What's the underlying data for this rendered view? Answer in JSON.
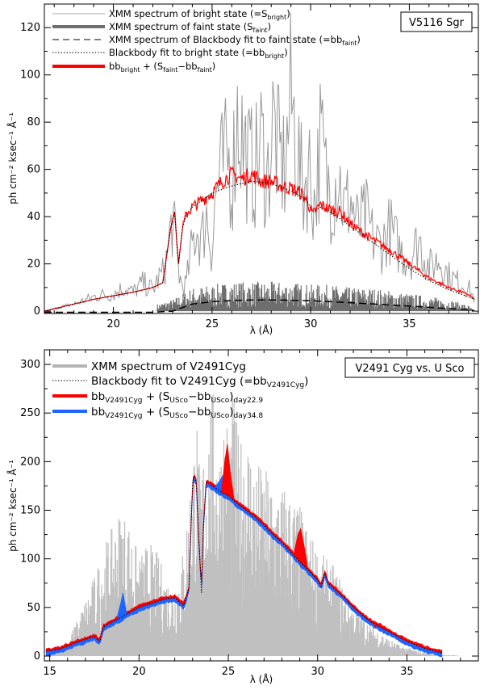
{
  "chart_data": [
    {
      "type": "line",
      "panel": "top",
      "title": "V5116 Sgr",
      "xlabel": "λ (Å)",
      "ylabel": "ph cm⁻² ksec⁻¹ Å⁻¹",
      "xlim": [
        16.5,
        38.5
      ],
      "ylim": [
        -1,
        130
      ],
      "xticks": [
        20,
        25,
        30,
        35
      ],
      "yticks": [
        0,
        20,
        40,
        60,
        80,
        100,
        120
      ],
      "legend": [
        {
          "text": "XMM spectrum of bright state (=S",
          "sub": "bright",
          "tail": ")",
          "style": "thin-gray"
        },
        {
          "text": "XMM spectrum of faint state (S",
          "sub": "faint",
          "tail": ")",
          "style": "thick-gray"
        },
        {
          "text": "XMM spectrum of Blackbody fit to faint state (=bb",
          "sub": "faint",
          "tail": ")",
          "style": "dashed"
        },
        {
          "text": "Blackbody fit to bright state (=bb",
          "sub": "bright",
          "tail": ")",
          "style": "dotted"
        },
        {
          "parts": [
            "bb",
            "bright",
            " + (S",
            "faint",
            "−bb",
            "faint",
            ")"
          ],
          "style": "red"
        }
      ],
      "series": [
        {
          "name": "S_bright",
          "color": "#999999",
          "x": [
            16.5,
            17,
            18,
            19,
            19.5,
            20,
            20.5,
            21,
            21.5,
            22,
            22.3,
            22.5,
            22.7,
            23.0,
            23.2,
            23.35,
            23.5,
            23.7,
            24.0,
            24.2,
            24.5,
            24.7,
            25.0,
            25.2,
            25.5,
            25.8,
            26.0,
            26.3,
            26.6,
            26.9,
            27.2,
            27.5,
            27.8,
            28.1,
            28.4,
            28.7,
            29.0,
            29.3,
            29.6,
            29.9,
            30.2,
            30.5,
            30.8,
            31.1,
            31.4,
            31.7,
            32.0,
            32.4,
            32.8,
            33.2,
            33.6,
            34.0,
            34.5,
            35.0,
            35.5,
            36.0,
            36.5,
            37.0,
            37.5,
            38.0,
            38.3
          ],
          "values": [
            0,
            1,
            3,
            6,
            7,
            7,
            10,
            8,
            12,
            9,
            14,
            16,
            22,
            40,
            25,
            15,
            10,
            12,
            28,
            35,
            30,
            42,
            25,
            50,
            60,
            65,
            55,
            85,
            70,
            62,
            60,
            72,
            55,
            80,
            65,
            60,
            90,
            70,
            50,
            62,
            45,
            72,
            55,
            50,
            60,
            42,
            48,
            35,
            40,
            30,
            28,
            35,
            26,
            22,
            30,
            18,
            22,
            15,
            12,
            10,
            5
          ]
        },
        {
          "name": "S_faint",
          "color": "#6e6e6e",
          "x": [
            16.5,
            18,
            20,
            21,
            22,
            22.5,
            23,
            23.5,
            24,
            25,
            26,
            27,
            28,
            29,
            30,
            31,
            32,
            33,
            34,
            35,
            36,
            37,
            38,
            38.3
          ],
          "values": [
            0,
            0,
            0,
            0.5,
            1,
            1.5,
            2,
            3,
            4,
            4.5,
            5,
            5,
            5,
            5,
            4.5,
            4.5,
            4,
            4,
            3.5,
            3,
            2.5,
            2,
            1,
            0
          ]
        },
        {
          "name": "bb_faint",
          "color": "#000000",
          "x": [
            16.5,
            18,
            20,
            22,
            23,
            23.5,
            24,
            25,
            26,
            27,
            28,
            29,
            30,
            31,
            32,
            33,
            34,
            35,
            36,
            37,
            38,
            38.3
          ],
          "values": [
            -0.5,
            -0.5,
            -0.5,
            -0.5,
            0,
            1.5,
            3,
            4,
            4.5,
            4.7,
            4.7,
            4.6,
            4.4,
            4.0,
            3.6,
            3.1,
            2.6,
            2.1,
            1.6,
            1.1,
            0.6,
            0.2
          ]
        },
        {
          "name": "bb_bright",
          "color": "#000000",
          "x": [
            16.5,
            17,
            18,
            19,
            20,
            21,
            22,
            22.5,
            22.9,
            23.1,
            23.3,
            23.5,
            23.7,
            24.0,
            24.5,
            25,
            26,
            27,
            28,
            29,
            29.8,
            30.1,
            30.5,
            31,
            32,
            33,
            34,
            35,
            36,
            37,
            38,
            38.3
          ],
          "values": [
            0,
            1,
            3,
            5,
            6.5,
            8,
            10,
            12,
            35,
            42,
            20,
            35,
            41,
            44,
            47,
            50,
            53,
            55,
            54,
            51,
            47,
            42,
            44,
            42,
            36,
            30,
            24,
            18,
            13,
            9,
            6,
            5
          ]
        },
        {
          "name": "bb_bright + (S_faint - bb_faint)",
          "color": "#ff0000",
          "x": [
            16.5,
            17,
            18,
            19,
            20,
            21,
            22,
            22.5,
            22.9,
            23.1,
            23.3,
            23.5,
            23.7,
            24.0,
            24.5,
            25,
            25.5,
            26,
            26.5,
            27,
            27.5,
            28,
            28.5,
            29,
            29.5,
            29.8,
            30.1,
            30.5,
            31,
            31.5,
            32,
            33,
            34,
            35,
            36,
            37,
            38,
            38.3
          ],
          "values": [
            0,
            1,
            3,
            5,
            6.5,
            8,
            10,
            12,
            35,
            42,
            20,
            35,
            41,
            44,
            47,
            50,
            55,
            58,
            56,
            58,
            55,
            55,
            53,
            52,
            50,
            47,
            41,
            45,
            43,
            42,
            37,
            31,
            26,
            20,
            14,
            10,
            7,
            5
          ]
        }
      ]
    },
    {
      "type": "area",
      "panel": "bottom",
      "title": "V2491 Cyg vs. U Sco",
      "xlabel": "λ (Å)",
      "ylabel": "ph cm⁻² ksec⁻¹ Å⁻¹",
      "xlim": [
        14.7,
        39
      ],
      "ylim": [
        -5,
        315
      ],
      "xticks": [
        15,
        20,
        25,
        30,
        35
      ],
      "yticks": [
        0,
        50,
        100,
        150,
        200,
        250,
        300
      ],
      "legend": [
        {
          "text": "XMM spectrum of V2491Cyg",
          "style": "thick-lightgray"
        },
        {
          "text": "Blackbody fit to V2491Cyg (=bb",
          "sub": "V2491Cyg",
          "tail": ")",
          "style": "dotted"
        },
        {
          "parts": [
            "bb",
            "V2491Cyg",
            " + (S",
            "USco",
            "−bb",
            "USco",
            ")",
            "day22.9"
          ],
          "style": "red"
        },
        {
          "parts": [
            "bb",
            "V2491Cyg",
            " + (S",
            "USco",
            "−bb",
            "USco",
            ")",
            "day34.8"
          ],
          "style": "blue"
        }
      ],
      "series": [
        {
          "name": "XMM spectrum of V2491Cyg",
          "color": "#c0c0c0",
          "x": [
            15,
            15.5,
            16,
            16.5,
            17,
            17.5,
            18,
            18.5,
            19,
            19.5,
            20,
            20.5,
            21,
            21.5,
            22,
            22.5,
            23,
            23.2,
            23.4,
            23.6,
            23.8,
            24,
            24.2,
            24.5,
            24.8,
            25,
            25.3,
            25.6,
            26,
            26.4,
            26.8,
            27.2,
            27.6,
            28,
            28.4,
            28.8,
            29.2,
            29.6,
            30,
            30.4,
            30.8,
            31.2,
            31.6,
            32,
            32.5,
            33,
            33.5,
            34,
            34.5,
            35,
            35.5,
            36,
            36.5,
            37,
            37.5,
            38
          ],
          "values": [
            5,
            8,
            15,
            30,
            50,
            70,
            95,
            110,
            130,
            115,
            85,
            100,
            90,
            70,
            60,
            95,
            175,
            225,
            160,
            180,
            200,
            235,
            225,
            185,
            225,
            205,
            230,
            185,
            205,
            175,
            165,
            160,
            150,
            150,
            145,
            135,
            125,
            105,
            95,
            85,
            80,
            70,
            55,
            45,
            35,
            28,
            22,
            15,
            10,
            8,
            5,
            3,
            2,
            1,
            1,
            0
          ]
        },
        {
          "name": "bb_V2491Cyg",
          "color": "#000000",
          "x": [
            14.8,
            15.5,
            16,
            16.5,
            17,
            17.5,
            17.8,
            18,
            18.5,
            19,
            19.5,
            20,
            20.5,
            21,
            21.5,
            22,
            22.5,
            22.8,
            23.0,
            23.1,
            23.2,
            23.3,
            23.5,
            23.6,
            23.75,
            23.9,
            24.1,
            24.5,
            25,
            25.5,
            26,
            26.5,
            27,
            27.5,
            28,
            28.5,
            29,
            29.5,
            30,
            30.2,
            30.4,
            30.6,
            31,
            31.5,
            32,
            32.5,
            33,
            34,
            35,
            36,
            37
          ],
          "values": [
            5,
            7,
            10,
            14,
            17,
            20,
            15,
            30,
            35,
            40,
            45,
            50,
            53,
            56,
            59,
            60,
            52,
            70,
            180,
            185,
            180,
            140,
            65,
            130,
            178,
            178,
            175,
            170,
            165,
            157,
            150,
            143,
            135,
            125,
            117,
            107,
            97,
            88,
            78,
            72,
            85,
            75,
            68,
            60,
            50,
            42,
            35,
            25,
            15,
            8,
            3
          ]
        },
        {
          "name": "day22.9",
          "color": "#ff0000",
          "x": [
            24.6,
            24.8,
            24.95,
            25.1,
            25.3,
            28.7,
            28.9,
            29.05,
            29.2,
            29.4,
            33.2,
            33.5,
            33.8
          ],
          "values": [
            166,
            200,
            218,
            190,
            164,
            108,
            125,
            131,
            118,
            96,
            30,
            34,
            28
          ]
        },
        {
          "name": "day34.8",
          "color": "#1e64ff",
          "x": [
            18.8,
            19.0,
            19.1,
            19.3,
            24.2,
            24.5,
            24.7,
            24.9,
            25.1
          ],
          "values": [
            42,
            56,
            65,
            44,
            172,
            180,
            186,
            175,
            164
          ]
        }
      ]
    }
  ]
}
